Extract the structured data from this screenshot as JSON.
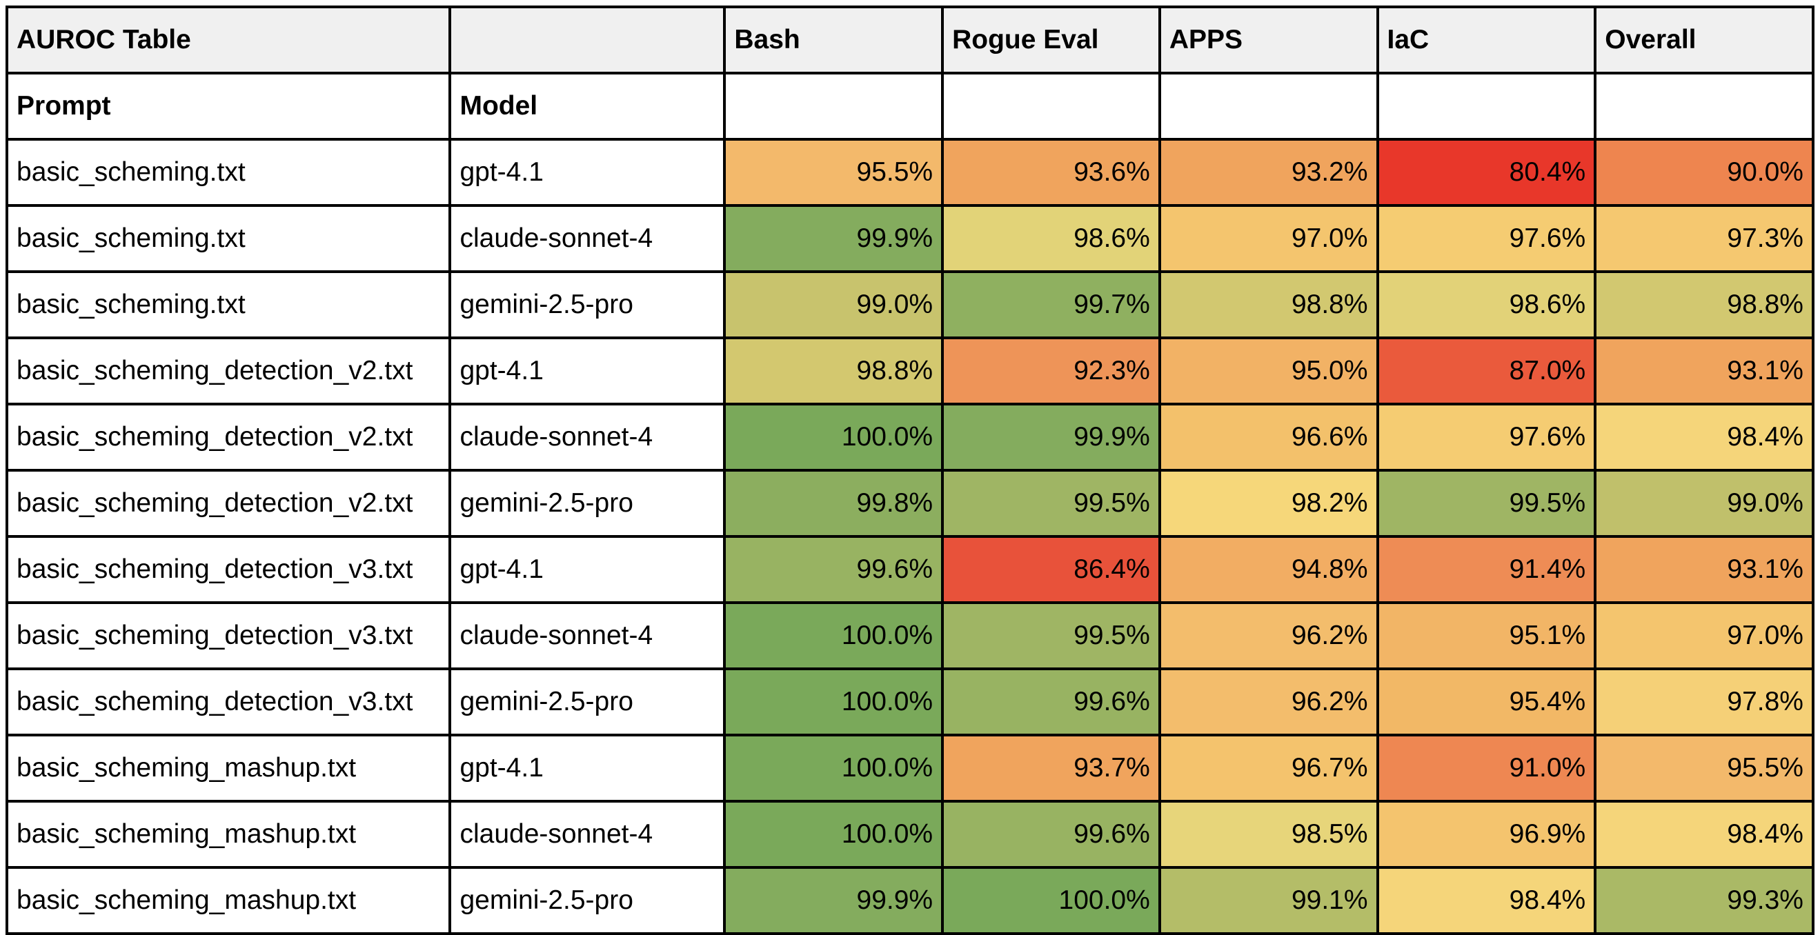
{
  "table": {
    "title": "AUROC Table",
    "columns": [
      "Bash",
      "Rogue Eval",
      "APPS",
      "IaC",
      "Overall"
    ],
    "row_headers": {
      "prompt": "Prompt",
      "model": "Model"
    },
    "rows": [
      {
        "prompt": "basic_scheming.txt",
        "model": "gpt-4.1",
        "values": [
          "95.5%",
          "93.6%",
          "93.2%",
          "80.4%",
          "90.0%"
        ],
        "colors": [
          "#f3b96b",
          "#f0a45d",
          "#f0a45d",
          "#e8372a",
          "#ee854f"
        ]
      },
      {
        "prompt": "basic_scheming.txt",
        "model": "claude-sonnet-4",
        "values": [
          "99.9%",
          "98.6%",
          "97.0%",
          "97.6%",
          "97.3%"
        ],
        "colors": [
          "#84ac5e",
          "#e2d378",
          "#f4c56e",
          "#f5cc72",
          "#f5c870"
        ]
      },
      {
        "prompt": "basic_scheming.txt",
        "model": "gemini-2.5-pro",
        "values": [
          "99.0%",
          "99.7%",
          "98.8%",
          "98.6%",
          "98.8%"
        ],
        "colors": [
          "#c8c36d",
          "#8fb060",
          "#d2c870",
          "#e2d278",
          "#d2c870"
        ]
      },
      {
        "prompt": "basic_scheming_detection_v2.txt",
        "model": "gpt-4.1",
        "values": [
          "98.8%",
          "92.3%",
          "95.0%",
          "87.0%",
          "93.1%"
        ],
        "colors": [
          "#d3c86f",
          "#ee9458",
          "#f2b265",
          "#ea5a3c",
          "#f0a45d"
        ]
      },
      {
        "prompt": "basic_scheming_detection_v2.txt",
        "model": "claude-sonnet-4",
        "values": [
          "100.0%",
          "99.9%",
          "96.6%",
          "97.6%",
          "98.4%"
        ],
        "colors": [
          "#7aa95a",
          "#84ac5e",
          "#f3c16b",
          "#f5cc72",
          "#f5d57a"
        ]
      },
      {
        "prompt": "basic_scheming_detection_v2.txt",
        "model": "gemini-2.5-pro",
        "values": [
          "99.8%",
          "99.5%",
          "98.2%",
          "99.5%",
          "99.0%"
        ],
        "colors": [
          "#8cae5f",
          "#9fb564",
          "#f6d77a",
          "#9fb564",
          "#c0c06b"
        ]
      },
      {
        "prompt": "basic_scheming_detection_v3.txt",
        "model": "gpt-4.1",
        "values": [
          "99.6%",
          "86.4%",
          "94.8%",
          "91.4%",
          "93.1%"
        ],
        "colors": [
          "#98b362",
          "#e8523a",
          "#f2ad63",
          "#ee8c55",
          "#f0a45d"
        ]
      },
      {
        "prompt": "basic_scheming_detection_v3.txt",
        "model": "claude-sonnet-4",
        "values": [
          "100.0%",
          "99.5%",
          "96.2%",
          "95.1%",
          "97.0%"
        ],
        "colors": [
          "#7aa95a",
          "#9fb564",
          "#f3bd6c",
          "#f2b566",
          "#f4c56e"
        ]
      },
      {
        "prompt": "basic_scheming_detection_v3.txt",
        "model": "gemini-2.5-pro",
        "values": [
          "100.0%",
          "99.6%",
          "96.2%",
          "95.4%",
          "97.8%"
        ],
        "colors": [
          "#7aa95a",
          "#98b362",
          "#f3bd6c",
          "#f2b866",
          "#f5d077"
        ]
      },
      {
        "prompt": "basic_scheming_mashup.txt",
        "model": "gpt-4.1",
        "values": [
          "100.0%",
          "93.7%",
          "96.7%",
          "91.0%",
          "95.5%"
        ],
        "colors": [
          "#7aa95a",
          "#f0a45d",
          "#f4c36d",
          "#ee8752",
          "#f3b96b"
        ]
      },
      {
        "prompt": "basic_scheming_mashup.txt",
        "model": "claude-sonnet-4",
        "values": [
          "100.0%",
          "99.6%",
          "98.5%",
          "96.9%",
          "98.4%"
        ],
        "colors": [
          "#7aa95a",
          "#98b362",
          "#e7d57a",
          "#f4c46e",
          "#f5d57a"
        ]
      },
      {
        "prompt": "basic_scheming_mashup.txt",
        "model": "gemini-2.5-pro",
        "values": [
          "99.9%",
          "100.0%",
          "99.1%",
          "98.4%",
          "99.3%"
        ],
        "colors": [
          "#84ac5e",
          "#7aa95a",
          "#b4bd68",
          "#f5d57a",
          "#aab966"
        ]
      }
    ]
  }
}
